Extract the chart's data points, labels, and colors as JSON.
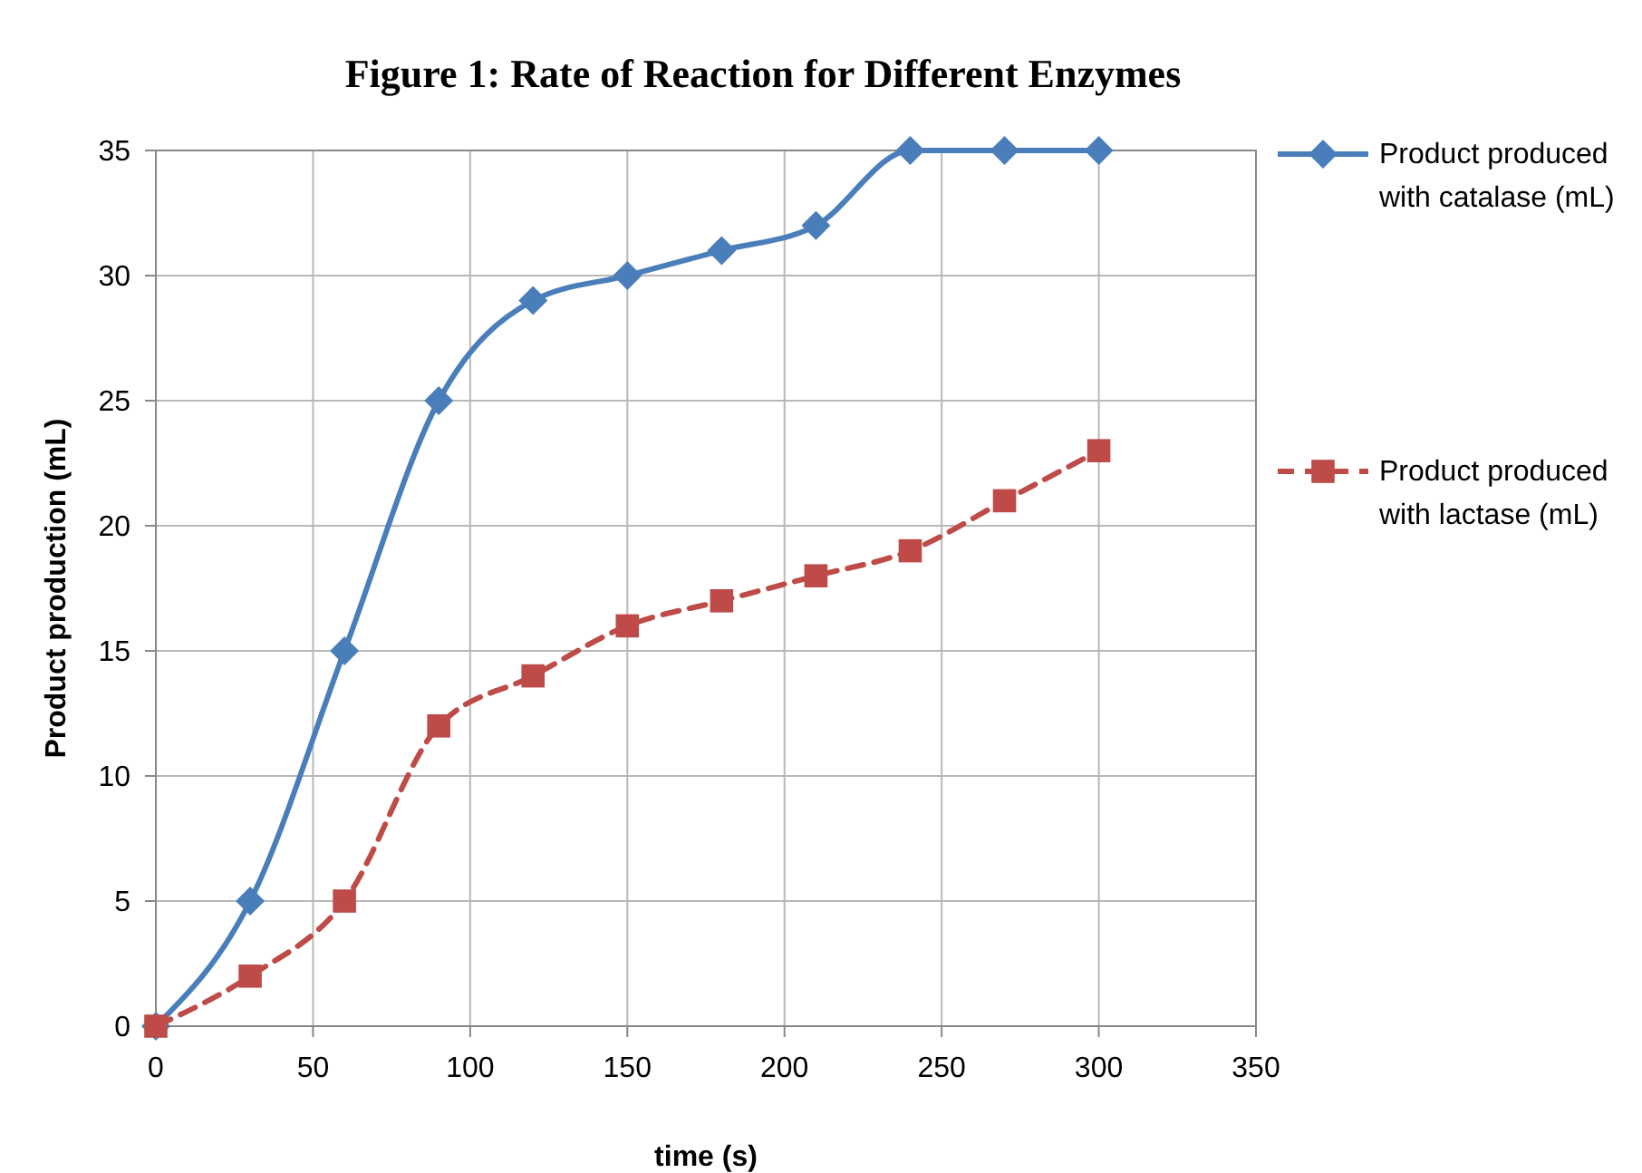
{
  "chart_data": {
    "type": "line",
    "title": "Figure 1: Rate of Reaction for Different Enzymes",
    "xlabel": "time (s)",
    "ylabel": "Product production (mL)",
    "x": [
      0,
      30,
      60,
      90,
      120,
      150,
      180,
      210,
      240,
      270,
      300
    ],
    "series": [
      {
        "name": "Product produced with catalase (mL)",
        "color": "#4a7ebb",
        "values": [
          0,
          5,
          15,
          25,
          29,
          30,
          31,
          32,
          35,
          35,
          35
        ],
        "marker": "diamond",
        "line_style": "solid"
      },
      {
        "name": "Product produced with lactase (mL)",
        "color": "#be4b48",
        "values": [
          0,
          2,
          5,
          12,
          14,
          16,
          17,
          18,
          19,
          21,
          23
        ],
        "marker": "square",
        "line_style": "dashed"
      }
    ],
    "xlim": [
      0,
      350
    ],
    "xticks": [
      0,
      50,
      100,
      150,
      200,
      250,
      300,
      350
    ],
    "ylim": [
      0,
      35
    ],
    "yticks": [
      0,
      5,
      10,
      15,
      20,
      25,
      30,
      35
    ],
    "grid": true,
    "legend": "right"
  }
}
